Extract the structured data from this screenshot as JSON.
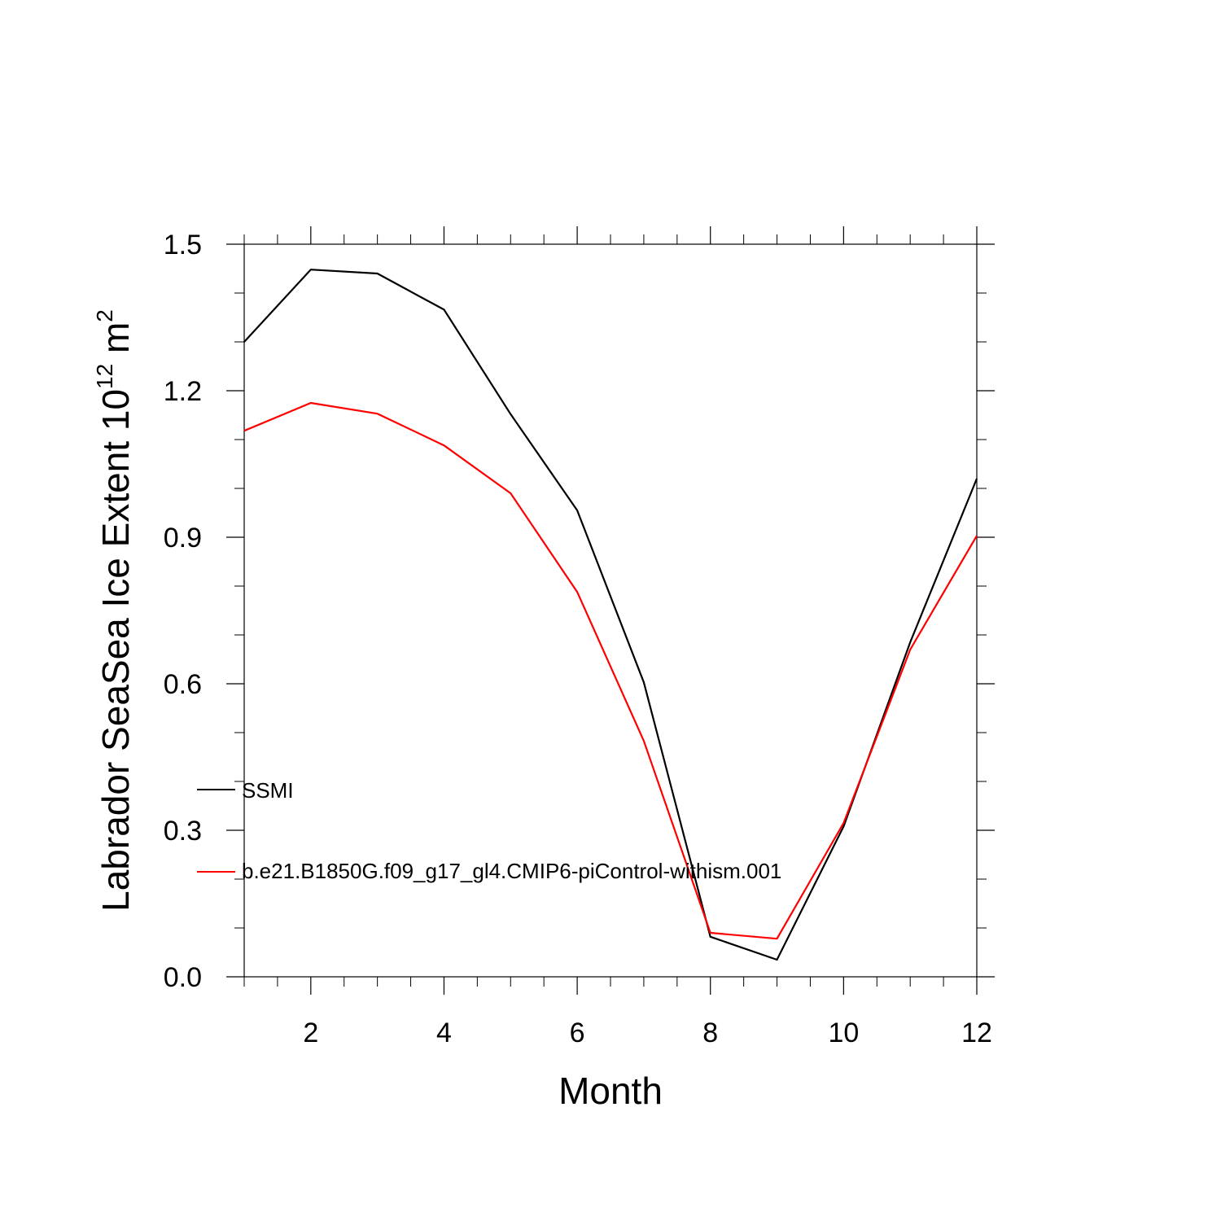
{
  "chart_data": {
    "type": "line",
    "xlabel": "Month",
    "ylabel_main": "Labrador SeaSea Ice Extent 10",
    "ylabel_exponent": "12",
    "ylabel_unit": " m",
    "ylabel_unit_exponent": "2",
    "xlim": [
      1,
      12
    ],
    "ylim": [
      0.0,
      1.5
    ],
    "xticks": [
      2,
      4,
      6,
      8,
      10,
      12
    ],
    "xtick_labels": [
      "2",
      "4",
      "6",
      "8",
      "10",
      "12"
    ],
    "yticks": [
      0.0,
      0.3,
      0.6,
      0.9,
      1.2,
      1.5
    ],
    "ytick_labels": [
      "0.0",
      "0.3",
      "0.6",
      "0.9",
      "1.2",
      "1.5"
    ],
    "legend_position": "inside-left",
    "grid": false,
    "x": [
      1,
      2,
      3,
      4,
      5,
      6,
      7,
      8,
      9,
      10,
      11,
      12
    ],
    "series": [
      {
        "name": "SSMI",
        "color": "#000000",
        "values": [
          1.3,
          1.448,
          1.44,
          1.366,
          1.152,
          0.955,
          0.603,
          0.082,
          0.035,
          0.308,
          0.685,
          1.02
        ]
      },
      {
        "name": "b.e21.B1850G.f09_g17_gl4.CMIP6-piControl-withism.001",
        "color": "#ff0000",
        "values": [
          1.118,
          1.175,
          1.153,
          1.088,
          0.99,
          0.788,
          0.483,
          0.09,
          0.078,
          0.315,
          0.67,
          0.903
        ]
      }
    ]
  }
}
